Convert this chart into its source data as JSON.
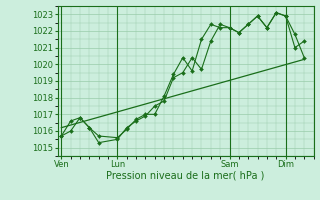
{
  "bg_color": "#cceedd",
  "grid_color": "#99ccaa",
  "line_color": "#1a6e1a",
  "marker_color": "#1a6e1a",
  "text_color": "#1a6e1a",
  "xlabel": "Pression niveau de la mer( hPa )",
  "ylim": [
    1014.5,
    1023.5
  ],
  "yticks": [
    1015,
    1016,
    1017,
    1018,
    1019,
    1020,
    1021,
    1022,
    1023
  ],
  "day_labels": [
    "Ven",
    "Lun",
    "Sam",
    "Dim"
  ],
  "day_positions": [
    0,
    3,
    9,
    12
  ],
  "vline_positions": [
    0,
    3,
    9,
    12
  ],
  "series1_x": [
    0,
    0.5,
    1.0,
    1.5,
    2.0,
    3.0,
    3.5,
    4.0,
    4.5,
    5.0,
    5.5,
    6.0,
    6.5,
    7.0,
    7.5,
    8.0,
    8.5,
    9.0,
    9.5,
    10.0,
    10.5,
    11.0,
    11.5,
    12.0,
    12.5,
    13.0
  ],
  "series1_y": [
    1015.7,
    1016.6,
    1016.8,
    1016.2,
    1015.3,
    1015.5,
    1016.2,
    1016.6,
    1016.9,
    1017.5,
    1017.8,
    1019.2,
    1019.5,
    1020.4,
    1019.7,
    1021.4,
    1022.4,
    1022.2,
    1021.9,
    1022.4,
    1022.9,
    1022.2,
    1023.1,
    1022.9,
    1021.0,
    1021.4
  ],
  "series2_x": [
    0,
    0.5,
    1.0,
    1.5,
    2.0,
    3.0,
    3.5,
    4.0,
    4.5,
    5.0,
    5.5,
    6.0,
    6.5,
    7.0,
    7.5,
    8.0,
    8.5,
    9.0,
    9.5,
    10.0,
    10.5,
    11.0,
    11.5,
    12.0,
    12.5,
    13.0
  ],
  "series2_y": [
    1015.7,
    1016.0,
    1016.8,
    1016.2,
    1015.7,
    1015.6,
    1016.1,
    1016.7,
    1017.0,
    1017.0,
    1018.1,
    1019.4,
    1020.4,
    1019.6,
    1021.5,
    1022.4,
    1022.2,
    1022.2,
    1021.9,
    1022.4,
    1022.9,
    1022.2,
    1023.1,
    1022.9,
    1021.8,
    1020.4
  ],
  "trend_x": [
    0,
    13.0
  ],
  "trend_y": [
    1016.2,
    1020.3
  ],
  "xlim": [
    -0.2,
    13.5
  ]
}
